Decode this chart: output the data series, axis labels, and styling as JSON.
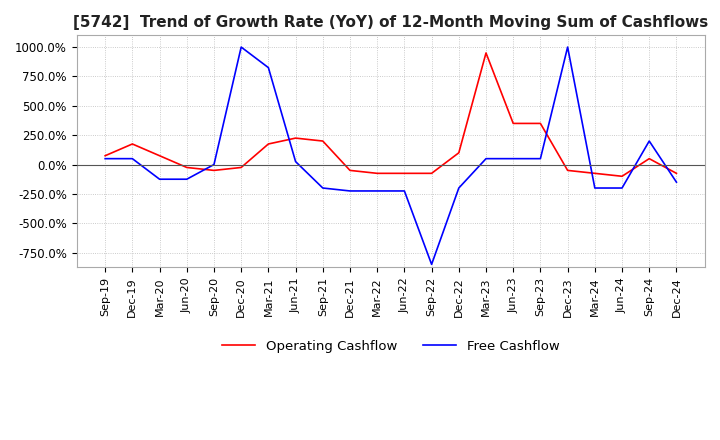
{
  "title": "[5742]  Trend of Growth Rate (YoY) of 12-Month Moving Sum of Cashflows",
  "title_fontsize": 11,
  "ylim": [
    -875,
    1100
  ],
  "yticks": [
    -750,
    -500,
    -250,
    0,
    250,
    500,
    750,
    1000
  ],
  "ytick_labels": [
    "-750.0%",
    "-500.0%",
    "-250.0%",
    "0.0%",
    "250.0%",
    "500.0%",
    "750.0%",
    "1000.0%"
  ],
  "background_color": "#ffffff",
  "plot_bg_color": "#ffffff",
  "grid_color": "#bbbbbb",
  "operating_color": "#ff0000",
  "free_color": "#0000ff",
  "x_labels": [
    "Sep-19",
    "Dec-19",
    "Mar-20",
    "Jun-20",
    "Sep-20",
    "Dec-20",
    "Mar-21",
    "Jun-21",
    "Sep-21",
    "Dec-21",
    "Mar-22",
    "Jun-22",
    "Sep-22",
    "Dec-22",
    "Mar-23",
    "Jun-23",
    "Sep-23",
    "Dec-23",
    "Mar-24",
    "Jun-24",
    "Sep-24",
    "Dec-24"
  ],
  "operating_cashflow": [
    75,
    175,
    75,
    -25,
    -50,
    -25,
    175,
    225,
    200,
    -50,
    -75,
    -75,
    -75,
    100,
    950,
    350,
    350,
    -50,
    -75,
    -100,
    50,
    -75
  ],
  "free_cashflow": [
    50,
    50,
    -125,
    -125,
    0,
    1000,
    825,
    25,
    -200,
    -225,
    -225,
    -225,
    -850,
    -200,
    50,
    50,
    50,
    1000,
    -200,
    -200,
    200,
    -150
  ]
}
